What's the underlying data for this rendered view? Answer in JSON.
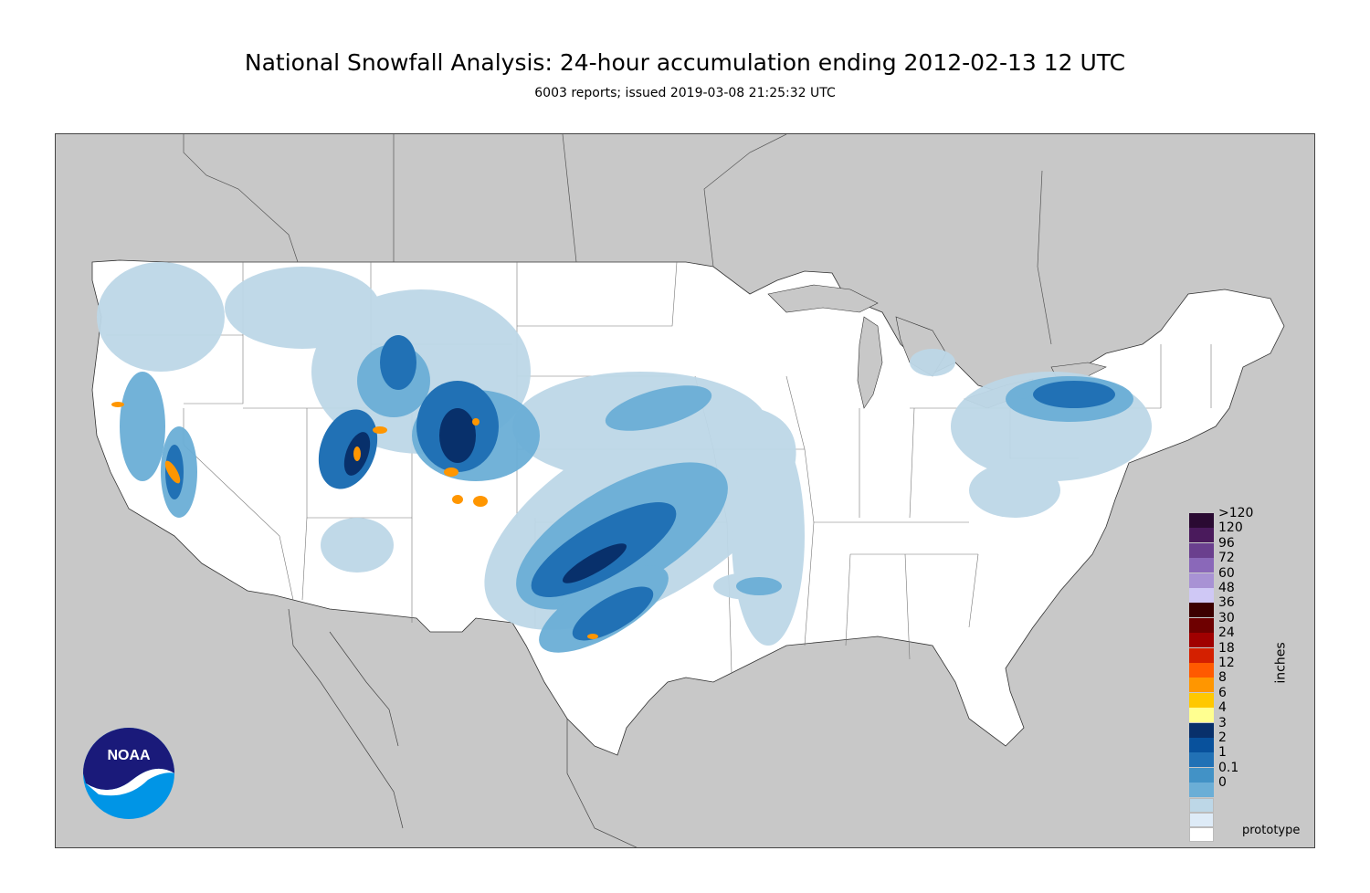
{
  "title": "National Snowfall Analysis: 24-hour accumulation ending 2012-02-13 12 UTC",
  "subtitle": "6003 reports; issued 2019-03-08 21:25:32 UTC",
  "legend": {
    "units": "inches",
    "levels": [
      {
        "label": ">120",
        "color": "#2a0a32"
      },
      {
        "label": "120",
        "color": "#4a1a5c"
      },
      {
        "label": "96",
        "color": "#6a3f8e"
      },
      {
        "label": "72",
        "color": "#8a68b9"
      },
      {
        "label": "60",
        "color": "#a892d4"
      },
      {
        "label": "48",
        "color": "#cfc8f5"
      },
      {
        "label": "36",
        "color": "#3c0000"
      },
      {
        "label": "30",
        "color": "#6e0000"
      },
      {
        "label": "24",
        "color": "#a00000"
      },
      {
        "label": "18",
        "color": "#d42000"
      },
      {
        "label": "12",
        "color": "#ff5a00"
      },
      {
        "label": "8",
        "color": "#ff9600"
      },
      {
        "label": "6",
        "color": "#ffc800"
      },
      {
        "label": "4",
        "color": "#ffff90"
      },
      {
        "label": "3",
        "color": "#08306b"
      },
      {
        "label": "2",
        "color": "#08519c"
      },
      {
        "label": "1",
        "color": "#2171b5"
      },
      {
        "label": "0.1",
        "color": "#4292c6"
      },
      {
        "label": "0",
        "color": "#6baed6"
      }
    ],
    "bottom_colors": [
      "#bdd7e7",
      "#deebf7",
      "#ffffff"
    ]
  },
  "logo_text": "NOAA",
  "footer": "prototype"
}
